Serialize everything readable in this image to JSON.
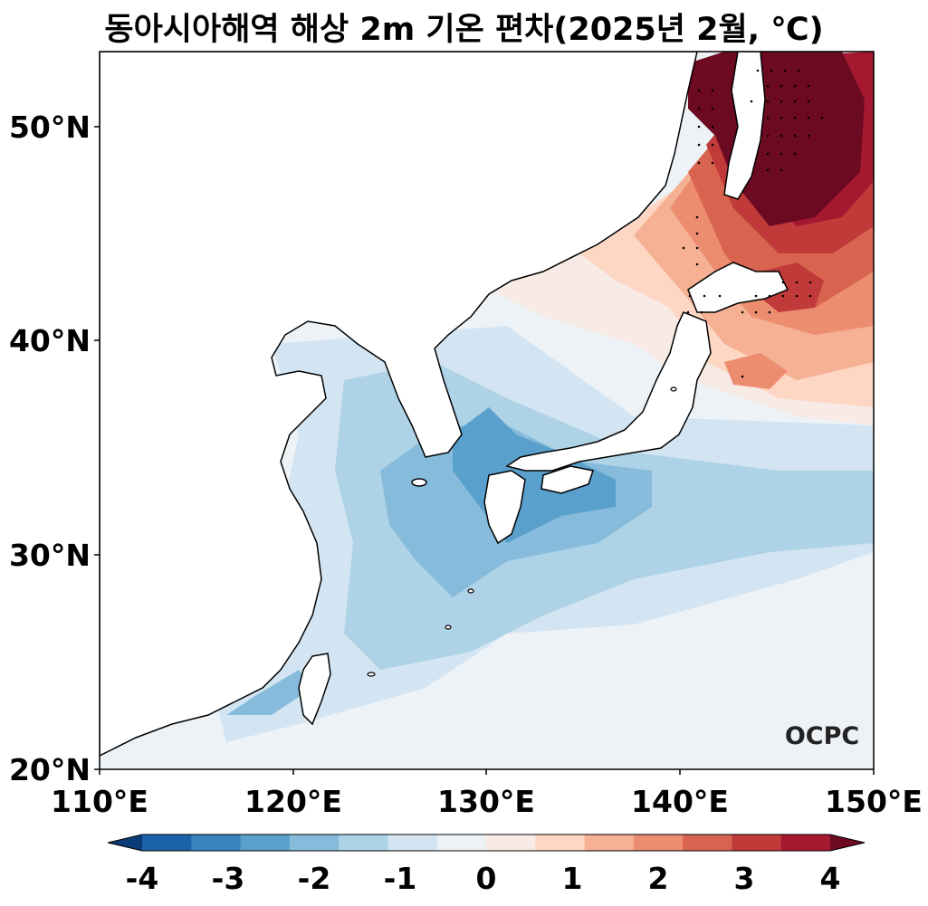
{
  "title": "동아시아해역 해상 2m 기온 편차(2025년 2월, ℃)",
  "logo_text": "OCPC",
  "lon_ticks": [
    "110°E",
    "120°E",
    "130°E",
    "140°E",
    "150°E"
  ],
  "lat_ticks": [
    "50°N",
    "40°N",
    "30°N",
    "20°N"
  ],
  "colorbar": {
    "ticks": [
      "-4",
      "-3",
      "-2",
      "-1",
      "0",
      "1",
      "2",
      "3",
      "4"
    ],
    "colors": [
      "#0b3c78",
      "#1c62aa",
      "#3784c1",
      "#5aa0cd",
      "#86bbdb",
      "#aed2e6",
      "#d3e5f2",
      "#edf2f7",
      "#f8ebe5",
      "#fdd7c3",
      "#f6b093",
      "#ec8d70",
      "#d8634f",
      "#c03a3a",
      "#a5182f",
      "#6c0a22"
    ]
  },
  "map": {
    "region": "East Asian seas",
    "lon_range": [
      110,
      150
    ],
    "lat_range": [
      20,
      53.5
    ],
    "variable": "2m air temperature anomaly",
    "units": "℃"
  }
}
